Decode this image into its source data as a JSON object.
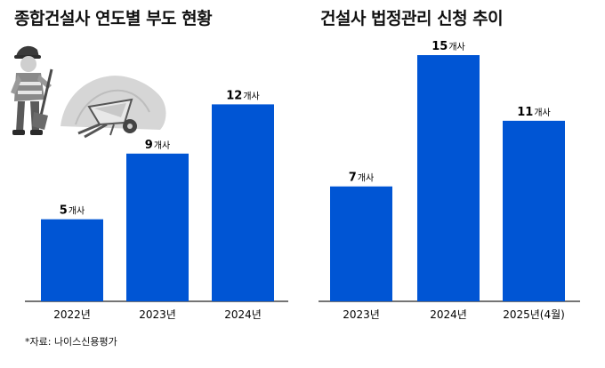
{
  "source": "*자료: 나이스신용평가",
  "bar_color": "#0055d4",
  "chart_data": [
    {
      "type": "bar",
      "title": "종합건설사 연도별 부도 현황",
      "unit": "개사",
      "categories": [
        "2022년",
        "2023년",
        "2024년"
      ],
      "values": [
        5,
        9,
        12
      ],
      "xlabel": "",
      "ylabel": "",
      "ylim": [
        0,
        15
      ]
    },
    {
      "type": "bar",
      "title": "건설사 법정관리 신청 추이",
      "unit": "개사",
      "categories": [
        "2023년",
        "2024년",
        "2025년(4월)"
      ],
      "values": [
        7,
        15,
        11
      ],
      "xlabel": "",
      "ylabel": "",
      "ylim": [
        0,
        15
      ]
    }
  ],
  "illustration": "construction-worker-with-shovel-and-wheelbarrow"
}
